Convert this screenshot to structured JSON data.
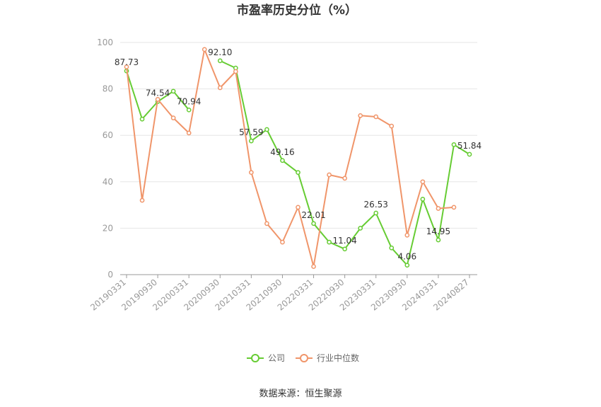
{
  "chart_data": {
    "type": "line",
    "title": "市盈率历史分位（%）",
    "xlabel": "",
    "ylabel": "",
    "ylim": [
      0,
      100
    ],
    "yticks": [
      0,
      20,
      40,
      60,
      80,
      100
    ],
    "grid": true,
    "legend_position": "bottom",
    "x": [
      "20190331",
      "20190630",
      "20190930",
      "20191231",
      "20200331",
      "20200630",
      "20200930",
      "20201231",
      "20210331",
      "20210630",
      "20210930",
      "20211231",
      "20220331",
      "20220630",
      "20220930",
      "20221231",
      "20230331",
      "20230630",
      "20230930",
      "20231231",
      "20240331",
      "20240630",
      "20240827"
    ],
    "x_tick_labels": [
      "20190331",
      "20190930",
      "20200331",
      "20200930",
      "20210331",
      "20210930",
      "20220331",
      "20220930",
      "20230331",
      "20230930",
      "20240331",
      "20240827"
    ],
    "series": [
      {
        "name": "公司",
        "color": "#66cc33",
        "values": [
          87.73,
          67,
          74.54,
          79,
          70.94,
          null,
          92.1,
          89,
          57.59,
          62.5,
          49.16,
          44,
          22.01,
          14,
          11.04,
          20,
          26.53,
          11.5,
          4.06,
          32.5,
          14.95,
          56,
          51.84
        ]
      },
      {
        "name": "行业中位数",
        "color": "#f0956a",
        "values": [
          89.5,
          32,
          75.5,
          67.5,
          61,
          97,
          80.5,
          87.5,
          44,
          22,
          14,
          29,
          3.5,
          43,
          41.5,
          68.5,
          68,
          64,
          17,
          40,
          28.5,
          29,
          null
        ]
      }
    ],
    "data_labels": [
      {
        "series": 0,
        "index": 0,
        "text": "87.73"
      },
      {
        "series": 0,
        "index": 2,
        "text": "74.54"
      },
      {
        "series": 0,
        "index": 4,
        "text": "70.94"
      },
      {
        "series": 0,
        "index": 6,
        "text": "92.10"
      },
      {
        "series": 0,
        "index": 8,
        "text": "57.59"
      },
      {
        "series": 0,
        "index": 10,
        "text": "49.16"
      },
      {
        "series": 0,
        "index": 12,
        "text": "22.01"
      },
      {
        "series": 0,
        "index": 14,
        "text": "11.04"
      },
      {
        "series": 0,
        "index": 16,
        "text": "26.53"
      },
      {
        "series": 0,
        "index": 18,
        "text": "4.06"
      },
      {
        "series": 0,
        "index": 20,
        "text": "14.95"
      },
      {
        "series": 0,
        "index": 22,
        "text": "51.84"
      }
    ]
  },
  "source": "数据来源：恒生聚源"
}
